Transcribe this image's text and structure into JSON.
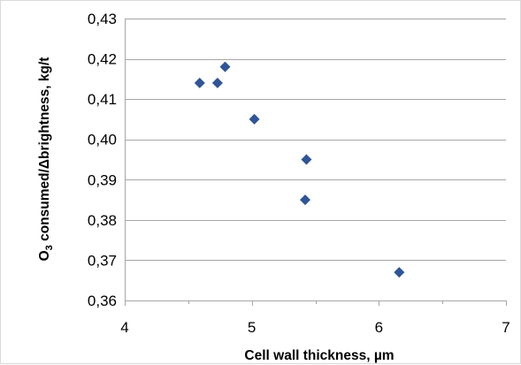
{
  "chart_data": {
    "type": "scatter",
    "xlabel": "Cell wall thickness, µm",
    "ylabel_parts": {
      "lead": "O",
      "subscript": "3",
      "rest": " consumed/Δbrightness, kg/t"
    },
    "xlim": [
      4,
      7
    ],
    "ylim": [
      0.36,
      0.43
    ],
    "x_ticks": [
      {
        "value": 4,
        "label": "4"
      },
      {
        "value": 5,
        "label": "5"
      },
      {
        "value": 6,
        "label": "6"
      },
      {
        "value": 7,
        "label": "7"
      }
    ],
    "y_ticks": [
      {
        "value": 0.36,
        "label": "0,36"
      },
      {
        "value": 0.37,
        "label": "0,37"
      },
      {
        "value": 0.38,
        "label": "0,38"
      },
      {
        "value": 0.39,
        "label": "0,39"
      },
      {
        "value": 0.4,
        "label": "0,40"
      },
      {
        "value": 0.41,
        "label": "0,41"
      },
      {
        "value": 0.42,
        "label": "0,42"
      },
      {
        "value": 0.43,
        "label": "0,43"
      }
    ],
    "grid": {
      "horizontal": true,
      "vertical": false
    },
    "minor_x_ticks": true,
    "marker": {
      "shape": "diamond",
      "color": "#2f5597"
    },
    "points": [
      {
        "x": 4.59,
        "y": 0.414
      },
      {
        "x": 4.73,
        "y": 0.414
      },
      {
        "x": 4.79,
        "y": 0.418
      },
      {
        "x": 5.02,
        "y": 0.405
      },
      {
        "x": 5.43,
        "y": 0.395
      },
      {
        "x": 5.42,
        "y": 0.385
      },
      {
        "x": 6.16,
        "y": 0.367
      }
    ]
  }
}
